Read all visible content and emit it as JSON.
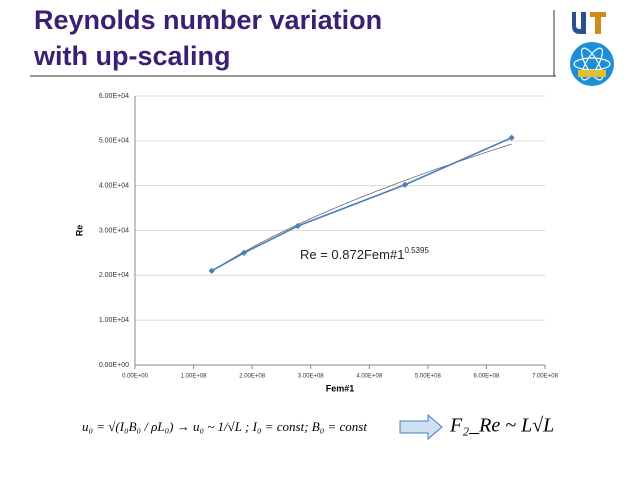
{
  "slide": {
    "title_lines": [
      "Reynolds number variation",
      "with up-scaling"
    ],
    "formula_left": "u₀ = √(I₀B₀ / ρL₀)  →  u₀ ~ 1/√L ;  I₀ = const;  B₀ = const",
    "formula_right": "F₂_Re ~ L√L"
  },
  "chart_data": {
    "type": "line",
    "x_label": "Fem#1",
    "y_label": "Re",
    "x": [
      131000000,
      186000000,
      278000000,
      461000000,
      643000000
    ],
    "series": [
      {
        "name": "Re",
        "color": "#4a7ebb",
        "values": [
          21000,
          25000,
          31000,
          40200,
          50700
        ]
      }
    ],
    "trendline": {
      "coefficient": 0.872,
      "exponent": 0.5395,
      "label": "Re = 0.872Fem#1",
      "exponent_label": "0.5395"
    },
    "xlim": [
      0,
      700000000
    ],
    "xticks": [
      {
        "value": 0,
        "label": "0.00E+00"
      },
      {
        "value": 100000000,
        "label": "1.00E+08"
      },
      {
        "value": 200000000,
        "label": "2.00E+08"
      },
      {
        "value": 300000000,
        "label": "3.00E+08"
      },
      {
        "value": 400000000,
        "label": "4.00E+08"
      },
      {
        "value": 500000000,
        "label": "5.00E+08"
      },
      {
        "value": 600000000,
        "label": "6.00E+08"
      },
      {
        "value": 700000000,
        "label": "7.00E+08"
      }
    ],
    "ylim": [
      0,
      60000
    ],
    "yticks": [
      {
        "value": 0,
        "label": "0.00E+00"
      },
      {
        "value": 10000,
        "label": "1.00E+04"
      },
      {
        "value": 20000,
        "label": "2.00E+04"
      },
      {
        "value": 30000,
        "label": "3.00E+04"
      },
      {
        "value": 40000,
        "label": "4.00E+04"
      },
      {
        "value": 50000,
        "label": "5.00E+04"
      },
      {
        "value": 60000,
        "label": "6.00E+04"
      }
    ],
    "grid": true
  }
}
